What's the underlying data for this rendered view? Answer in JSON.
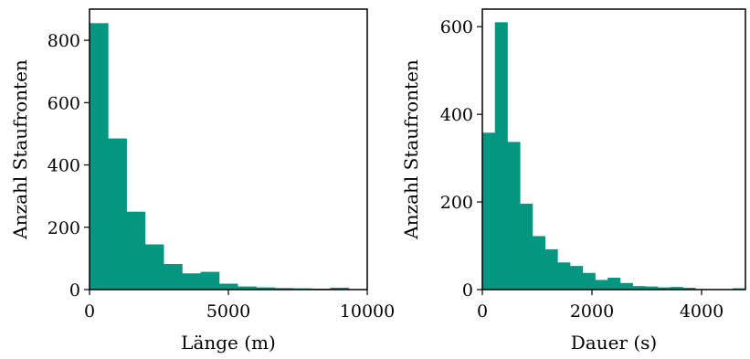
{
  "colors": {
    "bar": "#039680",
    "axis": "#000000"
  },
  "chart_data": [
    {
      "type": "bar",
      "subtype": "histogram",
      "xlabel": "Länge (m)",
      "ylabel": "Anzahl Staufronten",
      "xlim": [
        0,
        10000
      ],
      "ylim": [
        0,
        900
      ],
      "xticks": [
        0,
        5000,
        10000
      ],
      "xtick_labels": [
        "0",
        "5000",
        "10000"
      ],
      "yticks": [
        0,
        200,
        400,
        600,
        800
      ],
      "ytick_labels": [
        "0",
        "200",
        "400",
        "600",
        "800"
      ],
      "bin_edges": [
        0,
        667,
        1333,
        2000,
        2667,
        3333,
        4000,
        4667,
        5333,
        6000,
        6667,
        7333,
        8000,
        8667,
        9333,
        10000
      ],
      "values": [
        855,
        485,
        250,
        145,
        82,
        52,
        57,
        19,
        10,
        7,
        5,
        4,
        3,
        6,
        0
      ],
      "grid": false
    },
    {
      "type": "bar",
      "subtype": "histogram",
      "xlabel": "Dauer (s)",
      "ylabel": "Anzahl Staufronten",
      "xlim": [
        0,
        4800
      ],
      "ylim": [
        0,
        640
      ],
      "xticks": [
        0,
        2000,
        4000
      ],
      "xtick_labels": [
        "0",
        "2000",
        "4000"
      ],
      "yticks": [
        0,
        200,
        400,
        600
      ],
      "ytick_labels": [
        "0",
        "200",
        "400",
        "600"
      ],
      "bin_edges": [
        0,
        229,
        457,
        686,
        914,
        1143,
        1371,
        1600,
        1829,
        2057,
        2286,
        2514,
        2743,
        2971,
        3200,
        3429,
        3657,
        3886,
        4114,
        4343,
        4571,
        4800
      ],
      "values": [
        358,
        610,
        337,
        196,
        122,
        92,
        62,
        54,
        38,
        22,
        27,
        15,
        8,
        7,
        5,
        6,
        4,
        0,
        0,
        0,
        3
      ],
      "grid": false
    }
  ]
}
